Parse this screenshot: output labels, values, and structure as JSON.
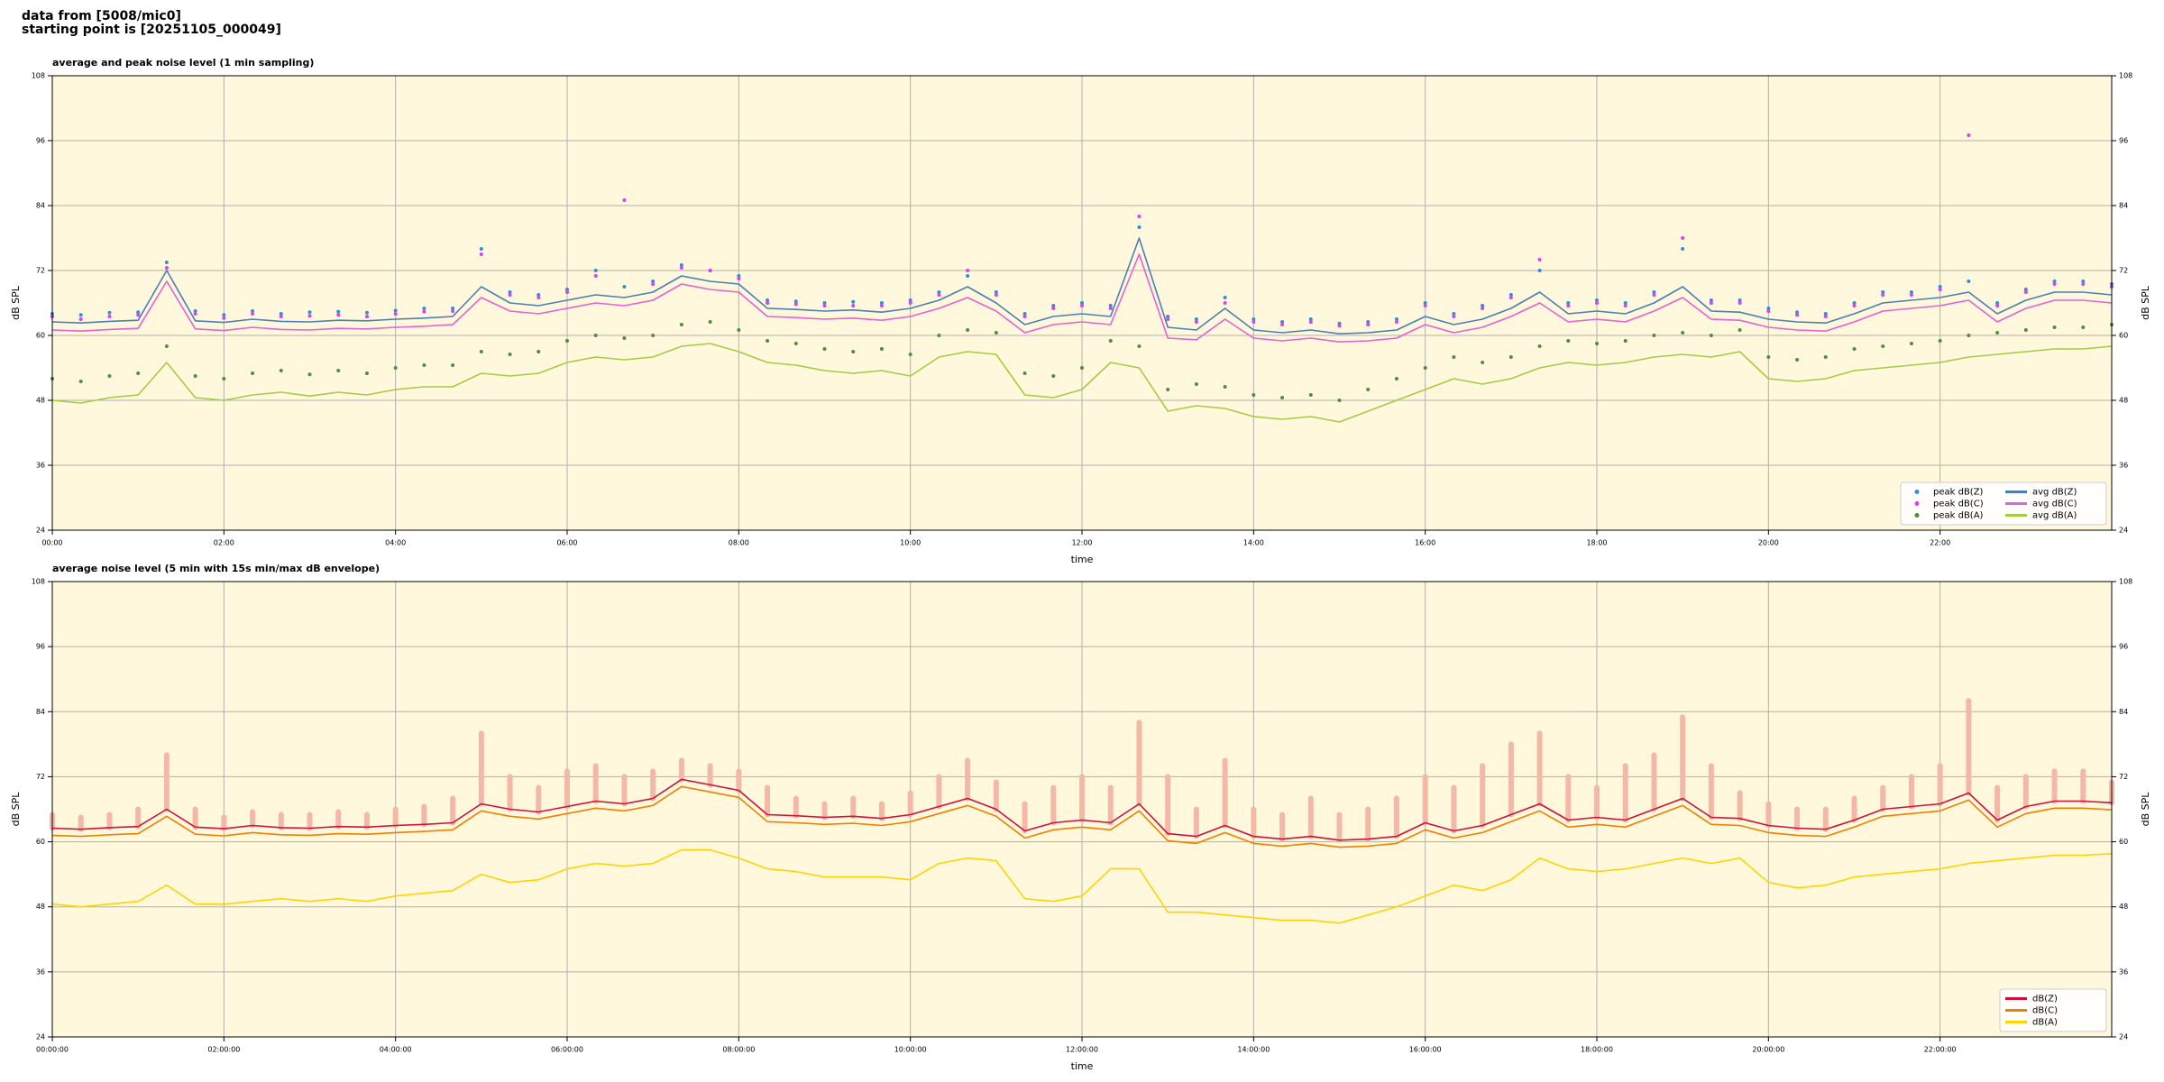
{
  "header": {
    "lines": [
      "data from [5008/mic0]",
      "starting point is [20251105_000049]"
    ]
  },
  "chart_data": [
    {
      "type": "line",
      "title": "average and peak noise level (1 min sampling)",
      "xlabel": "time",
      "ylabel": "dB SPL",
      "facecolor": "#fff8dc",
      "grid": true,
      "legend": "lower right",
      "legend_columns": 2,
      "xlim": [
        0,
        1440
      ],
      "ylim": [
        24,
        108
      ],
      "yticks": [
        24,
        36,
        48,
        60,
        72,
        84,
        96,
        108
      ],
      "xticks": [
        {
          "value": 0,
          "label": "00:00"
        },
        {
          "value": 120,
          "label": "02:00"
        },
        {
          "value": 240,
          "label": "04:00"
        },
        {
          "value": 360,
          "label": "06:00"
        },
        {
          "value": 480,
          "label": "08:00"
        },
        {
          "value": 600,
          "label": "10:00"
        },
        {
          "value": 720,
          "label": "12:00"
        },
        {
          "value": 840,
          "label": "14:00"
        },
        {
          "value": 960,
          "label": "16:00"
        },
        {
          "value": 1080,
          "label": "18:00"
        },
        {
          "value": 1200,
          "label": "20:00"
        },
        {
          "value": 1320,
          "label": "22:00"
        }
      ],
      "x": [
        0,
        20,
        40,
        60,
        80,
        100,
        120,
        140,
        160,
        180,
        200,
        220,
        240,
        260,
        280,
        300,
        320,
        340,
        360,
        380,
        400,
        420,
        440,
        460,
        480,
        500,
        520,
        540,
        560,
        580,
        600,
        620,
        640,
        660,
        680,
        700,
        720,
        740,
        760,
        780,
        800,
        820,
        840,
        860,
        880,
        900,
        920,
        940,
        960,
        980,
        1000,
        1020,
        1040,
        1060,
        1080,
        1100,
        1120,
        1140,
        1160,
        1180,
        1200,
        1220,
        1240,
        1260,
        1280,
        1300,
        1320,
        1340,
        1360,
        1380,
        1400,
        1420,
        1440
      ],
      "series": [
        {
          "name": "peak dB(Z)",
          "style": "marker",
          "color": "#2f8fdc",
          "values": [
            64,
            63.8,
            64.2,
            64.3,
            73.5,
            64.5,
            63.8,
            64.5,
            64,
            64.3,
            64.4,
            64.2,
            64.6,
            65,
            65,
            76,
            68,
            67.5,
            68.5,
            72,
            69,
            70,
            73,
            72,
            71,
            66.5,
            66.3,
            66,
            66.2,
            66,
            66.5,
            68,
            71,
            68,
            64,
            65.5,
            66,
            65.5,
            80,
            63.5,
            63,
            67,
            63,
            62.5,
            63,
            62.2,
            62.5,
            63,
            66,
            64,
            65.5,
            67.5,
            72,
            66,
            66.5,
            66,
            68,
            76,
            66.5,
            66.5,
            65,
            64.3,
            64,
            66,
            68,
            68,
            69,
            70,
            66,
            68.5,
            70,
            70,
            69.5
          ]
        },
        {
          "name": "peak dB(C)",
          "style": "marker",
          "color": "#e040e8",
          "values": [
            63.5,
            63,
            63.5,
            63.8,
            72.5,
            64,
            63.2,
            64,
            63.5,
            63.6,
            63.8,
            63.5,
            64,
            64.4,
            64.5,
            75,
            67.5,
            67,
            68,
            71,
            85,
            69.5,
            72.5,
            72,
            70.5,
            66,
            65.8,
            65.5,
            65.5,
            65.5,
            66,
            67.5,
            72,
            67.5,
            63.5,
            65,
            65.5,
            65,
            82,
            63,
            62.5,
            66,
            62.5,
            62,
            62.5,
            61.8,
            62,
            62.5,
            65.5,
            63.5,
            65,
            67,
            74,
            65.5,
            66,
            65.5,
            67.5,
            78,
            66,
            66,
            64.5,
            63.8,
            63.5,
            65.5,
            67.5,
            67.5,
            68.5,
            97,
            65.5,
            68,
            69.5,
            69.5,
            69
          ]
        },
        {
          "name": "peak dB(A)",
          "style": "marker",
          "color": "#4f8f3a",
          "values": [
            52,
            51.5,
            52.5,
            53,
            58,
            52.5,
            52,
            53,
            53.5,
            52.8,
            53.5,
            53,
            54,
            54.5,
            54.5,
            57,
            56.5,
            57,
            59,
            60,
            59.5,
            60,
            62,
            62.5,
            61,
            59,
            58.5,
            57.5,
            57,
            57.5,
            56.5,
            60,
            61,
            60.5,
            53,
            52.5,
            54,
            59,
            58,
            50,
            51,
            50.5,
            49,
            48.5,
            49,
            48,
            50,
            52,
            54,
            56,
            55,
            56,
            58,
            59,
            58.5,
            59,
            60,
            60.5,
            60,
            61,
            56,
            55.5,
            56,
            57.5,
            58,
            58.5,
            59,
            60,
            60.5,
            61,
            61.5,
            61.5,
            62
          ]
        },
        {
          "name": "avg dB(Z)",
          "style": "line",
          "color": "#4a7fb5",
          "values": [
            62.5,
            62.3,
            62.6,
            62.8,
            72,
            62.7,
            62.4,
            63,
            62.6,
            62.5,
            62.8,
            62.7,
            63,
            63.2,
            63.5,
            69,
            66,
            65.5,
            66.5,
            67.5,
            67,
            68,
            71,
            70,
            69.5,
            65,
            64.8,
            64.5,
            64.7,
            64.3,
            65,
            66.5,
            69,
            66,
            62,
            63.5,
            64,
            63.5,
            78,
            61.5,
            61,
            65,
            61,
            60.5,
            61,
            60.3,
            60.5,
            61,
            63.5,
            62,
            63,
            65,
            68,
            64,
            64.5,
            64,
            66,
            69,
            64.5,
            64.3,
            63,
            62.5,
            62.3,
            64,
            66,
            66.5,
            67,
            68,
            64,
            66.5,
            68,
            68,
            67.5
          ]
        },
        {
          "name": "avg dB(C)",
          "style": "line",
          "color": "#e462d2",
          "values": [
            61,
            60.8,
            61.1,
            61.3,
            70,
            61.2,
            60.9,
            61.5,
            61.1,
            61,
            61.3,
            61.2,
            61.5,
            61.7,
            62,
            67,
            64.5,
            64,
            65,
            66,
            65.5,
            66.5,
            69.5,
            68.5,
            68,
            63.5,
            63.3,
            63,
            63.2,
            62.8,
            63.5,
            65,
            67,
            64.5,
            60.5,
            62,
            62.5,
            62,
            75,
            59.5,
            59.2,
            63,
            59.5,
            59,
            59.5,
            58.8,
            59,
            59.5,
            62,
            60.5,
            61.5,
            63.5,
            66,
            62.5,
            63,
            62.5,
            64.5,
            67,
            63,
            62.8,
            61.5,
            61,
            60.8,
            62.5,
            64.5,
            65,
            65.5,
            66.5,
            62.5,
            65,
            66.5,
            66.5,
            66
          ]
        },
        {
          "name": "avg dB(A)",
          "style": "line",
          "color": "#a4cc44",
          "values": [
            48,
            47.5,
            48.5,
            49,
            55,
            48.5,
            48,
            49,
            49.5,
            48.8,
            49.5,
            49,
            50,
            50.5,
            50.5,
            53,
            52.5,
            53,
            55,
            56,
            55.5,
            56,
            58,
            58.5,
            57,
            55,
            54.5,
            53.5,
            53,
            53.5,
            52.5,
            56,
            57,
            56.5,
            49,
            48.5,
            50,
            55,
            54,
            46,
            47,
            46.5,
            45,
            44.5,
            45,
            44,
            46,
            48,
            50,
            52,
            51,
            52,
            54,
            55,
            54.5,
            55,
            56,
            56.5,
            56,
            57,
            52,
            51.5,
            52,
            53.5,
            54,
            54.5,
            55,
            56,
            56.5,
            57,
            57.5,
            57.5,
            58
          ]
        }
      ]
    },
    {
      "type": "line",
      "title": "average noise level (5 min with 15s min/max dB envelope)",
      "xlabel": "time",
      "ylabel": "dB SPL",
      "facecolor": "#fff8dc",
      "grid": true,
      "legend": "lower right",
      "legend_columns": 1,
      "xlim": [
        0,
        1440
      ],
      "ylim": [
        24,
        108
      ],
      "yticks": [
        24,
        36,
        48,
        60,
        72,
        84,
        96,
        108
      ],
      "xticks": [
        {
          "value": 0,
          "label": "00:00:00"
        },
        {
          "value": 120,
          "label": "02:00:00"
        },
        {
          "value": 240,
          "label": "04:00:00"
        },
        {
          "value": 360,
          "label": "06:00:00"
        },
        {
          "value": 480,
          "label": "08:00:00"
        },
        {
          "value": 600,
          "label": "10:00:00"
        },
        {
          "value": 720,
          "label": "12:00:00"
        },
        {
          "value": 840,
          "label": "14:00:00"
        },
        {
          "value": 960,
          "label": "16:00:00"
        },
        {
          "value": 1080,
          "label": "18:00:00"
        },
        {
          "value": 1200,
          "label": "20:00:00"
        },
        {
          "value": 1320,
          "label": "22:00:00"
        }
      ],
      "x": [
        0,
        20,
        40,
        60,
        80,
        100,
        120,
        140,
        160,
        180,
        200,
        220,
        240,
        260,
        280,
        300,
        320,
        340,
        360,
        380,
        400,
        420,
        440,
        460,
        480,
        500,
        520,
        540,
        560,
        580,
        600,
        620,
        640,
        660,
        680,
        700,
        720,
        740,
        760,
        780,
        800,
        820,
        840,
        860,
        880,
        900,
        920,
        940,
        960,
        980,
        1000,
        1020,
        1040,
        1060,
        1080,
        1100,
        1120,
        1140,
        1160,
        1180,
        1200,
        1220,
        1240,
        1260,
        1280,
        1300,
        1320,
        1340,
        1360,
        1380,
        1400,
        1420,
        1440
      ],
      "series": [
        {
          "name": "dB(Z)",
          "style": "line",
          "color": "#d0103a",
          "envelope_color": "#f4b8a8",
          "envelope_max": [
            65,
            64.5,
            65,
            66,
            76,
            66,
            64.5,
            65.5,
            65,
            65,
            65.5,
            65,
            66,
            66.5,
            68,
            80,
            72,
            70,
            73,
            74,
            72,
            73,
            75,
            74,
            73,
            70,
            68,
            67,
            68,
            67,
            69,
            72,
            75,
            71,
            67,
            70,
            72,
            70,
            82,
            72,
            66,
            75,
            66,
            65,
            68,
            65,
            66,
            68,
            72,
            70,
            74,
            78,
            80,
            72,
            70,
            74,
            76,
            83,
            74,
            69,
            67,
            66,
            66,
            68,
            70,
            72,
            74,
            86,
            70,
            72,
            73,
            73,
            71
          ],
          "values": [
            62.5,
            62.3,
            62.6,
            62.8,
            66,
            62.7,
            62.4,
            63,
            62.6,
            62.5,
            62.8,
            62.7,
            63,
            63.2,
            63.5,
            67,
            66,
            65.5,
            66.5,
            67.5,
            67,
            68,
            71.5,
            70.5,
            69.5,
            65,
            64.8,
            64.5,
            64.7,
            64.3,
            65,
            66.5,
            68,
            66,
            62,
            63.5,
            64,
            63.5,
            67,
            61.5,
            61,
            63,
            61,
            60.5,
            61,
            60.3,
            60.5,
            61,
            63.5,
            62,
            63,
            65,
            67,
            64,
            64.5,
            64,
            66,
            68,
            64.5,
            64.3,
            63,
            62.5,
            62.3,
            64,
            66,
            66.5,
            67,
            69,
            64,
            66.5,
            67.5,
            67.5,
            67.2
          ]
        },
        {
          "name": "dB(C)",
          "style": "line",
          "color": "#f08000",
          "values": [
            61.2,
            61,
            61.3,
            61.5,
            64.7,
            61.4,
            61.1,
            61.7,
            61.3,
            61.2,
            61.5,
            61.4,
            61.7,
            61.9,
            62.2,
            65.7,
            64.7,
            64.2,
            65.2,
            66.2,
            65.7,
            66.7,
            70.2,
            69.2,
            68.2,
            63.7,
            63.5,
            63.2,
            63.4,
            63,
            63.7,
            65.2,
            66.7,
            64.7,
            60.7,
            62.2,
            62.7,
            62.2,
            65.7,
            60.2,
            59.7,
            61.7,
            59.7,
            59.2,
            59.7,
            59,
            59.2,
            59.7,
            62.2,
            60.7,
            61.7,
            63.7,
            65.7,
            62.7,
            63.2,
            62.7,
            64.7,
            66.7,
            63.2,
            63,
            61.7,
            61.2,
            61,
            62.7,
            64.7,
            65.2,
            65.7,
            67.7,
            62.7,
            65.2,
            66.2,
            66.2,
            65.9
          ]
        },
        {
          "name": "dB(A)",
          "style": "line",
          "color": "#ffd400",
          "values": [
            48.5,
            48,
            48.5,
            49,
            52,
            48.5,
            48.5,
            49,
            49.5,
            49,
            49.5,
            49,
            50,
            50.5,
            51,
            54,
            52.5,
            53,
            55,
            56,
            55.5,
            56,
            58.5,
            58.5,
            57,
            55,
            54.5,
            53.5,
            53.5,
            53.5,
            53,
            56,
            57,
            56.5,
            49.5,
            49,
            50,
            55,
            55,
            47,
            47,
            46.5,
            46,
            45.5,
            45.5,
            45,
            46.5,
            48,
            50,
            52,
            51,
            53,
            57,
            55,
            54.5,
            55,
            56,
            57,
            56,
            57,
            52.5,
            51.5,
            52,
            53.5,
            54,
            54.5,
            55,
            56,
            56.5,
            57,
            57.5,
            57.5,
            57.8
          ]
        }
      ]
    }
  ]
}
